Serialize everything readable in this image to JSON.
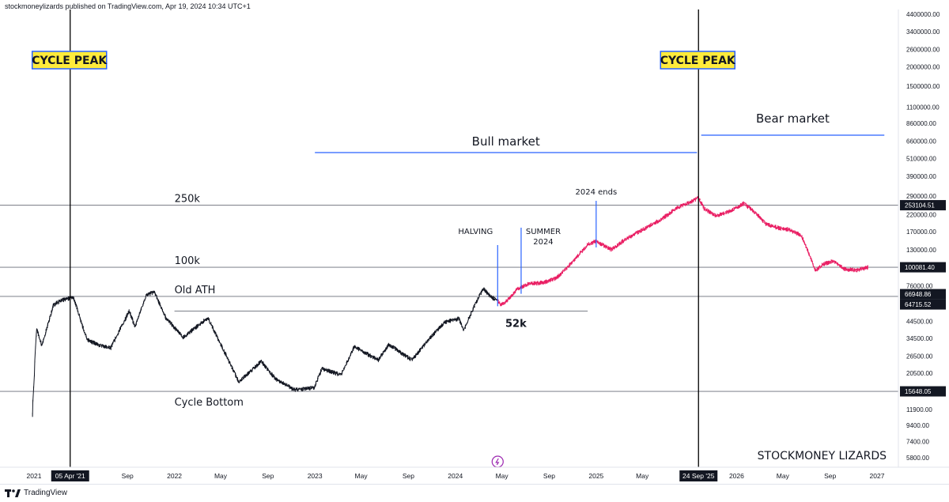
{
  "header": {
    "publisher_line": "stockmoneylizards published on TradingView.com, Apr 19, 2024 10:34 UTC+1"
  },
  "footer": {
    "brand": "TradingView",
    "logo_icon": "tradingview-logo-icon"
  },
  "colors": {
    "history": "#131722",
    "projection": "#e91e63",
    "bull_line": "#2962ff",
    "bear_line": "#2962ff",
    "bear_text": "#e91e63",
    "label_bg": "#ffeb3b",
    "label_border": "#2962ff",
    "price_tag_bg": "#131722"
  },
  "chart_data": {
    "type": "candlestick",
    "title": "",
    "y_scale": "log",
    "y_ticks": [
      "4400000.00",
      "3400000.00",
      "2600000.00",
      "2000000.00",
      "1500000.00",
      "1100000.00",
      "860000.00",
      "660000.00",
      "510000.00",
      "390000.00",
      "290000.00",
      "220000.00",
      "170000.00",
      "130000.00",
      "100000.00",
      "76000.00",
      "58500.00",
      "44500.00",
      "34500.00",
      "26500.00",
      "20500.00",
      "15500.00",
      "11900.00",
      "9400.00",
      "7400.00",
      "5800.00"
    ],
    "x_ticks": [
      "2021",
      "05 Apr '21",
      "Sep",
      "2022",
      "May",
      "Sep",
      "2023",
      "May",
      "Sep",
      "2024",
      "May",
      "Sep",
      "2025",
      "May",
      "24 Sep '25",
      "2026",
      "May",
      "Sep",
      "2027"
    ],
    "horizontal_levels": [
      {
        "label": "250k",
        "value": 253104.51,
        "tag": "253104.51"
      },
      {
        "label": "100k",
        "value": 100081.4,
        "tag": "100081.40"
      },
      {
        "label": "Old ATH",
        "value": 64715.52,
        "tag": "64715.52"
      },
      {
        "label": "Cycle Bottom",
        "value": 15648.05,
        "tag": "15648.05"
      }
    ],
    "current_price_tag": "66948.86",
    "level_52k": {
      "label": "52k",
      "value": 52000
    },
    "vertical_lines": [
      {
        "date": "2021-04-05",
        "label": "CYCLE PEAK",
        "tag": "05 Apr '21"
      },
      {
        "date": "2025-09-24",
        "label": "CYCLE PEAK",
        "tag": "24 Sep '25"
      }
    ],
    "annotations": [
      {
        "text": "HALVING",
        "date": "2024-04-20"
      },
      {
        "text": "SUMMER",
        "text2": "2024",
        "date": "2024-06-20"
      },
      {
        "text": "2024 ends",
        "date": "2025-01-01"
      }
    ],
    "regions": [
      {
        "label": "Bull market",
        "start": "2023-01-01",
        "end": "2025-09-20"
      },
      {
        "label": "Bear market",
        "start": "2025-10-01",
        "end": "2027-01-20"
      }
    ],
    "watermark": "STOCKMONEY LIZARDS",
    "series": [
      {
        "name": "",
        "kind": "history",
        "points": [
          [
            "2020-12-28",
            11000
          ],
          [
            "2021-01-08",
            40000
          ],
          [
            "2021-01-22",
            31000
          ],
          [
            "2021-02-21",
            57000
          ],
          [
            "2021-03-13",
            61000
          ],
          [
            "2021-04-14",
            64000
          ],
          [
            "2021-05-19",
            34000
          ],
          [
            "2021-06-22",
            31000
          ],
          [
            "2021-07-20",
            30000
          ],
          [
            "2021-09-06",
            52000
          ],
          [
            "2021-09-21",
            41000
          ],
          [
            "2021-10-20",
            66000
          ],
          [
            "2021-11-10",
            69000
          ],
          [
            "2021-12-10",
            47000
          ],
          [
            "2022-01-24",
            35000
          ],
          [
            "2022-03-29",
            47000
          ],
          [
            "2022-05-12",
            28000
          ],
          [
            "2022-06-18",
            18000
          ],
          [
            "2022-08-15",
            24500
          ],
          [
            "2022-09-20",
            19000
          ],
          [
            "2022-11-09",
            16000
          ],
          [
            "2022-12-30",
            16500
          ],
          [
            "2023-01-20",
            22000
          ],
          [
            "2023-03-10",
            20000
          ],
          [
            "2023-04-14",
            30500
          ],
          [
            "2023-06-15",
            25000
          ],
          [
            "2023-07-13",
            31500
          ],
          [
            "2023-09-11",
            25000
          ],
          [
            "2023-10-24",
            34000
          ],
          [
            "2023-12-05",
            44000
          ],
          [
            "2024-01-11",
            46500
          ],
          [
            "2024-01-23",
            39000
          ],
          [
            "2024-02-28",
            62000
          ],
          [
            "2024-03-14",
            73000
          ],
          [
            "2024-04-01",
            65000
          ],
          [
            "2024-04-18",
            61000
          ]
        ]
      },
      {
        "name": "",
        "kind": "projection",
        "points": [
          [
            "2024-04-19",
            62000
          ],
          [
            "2024-04-28",
            57000
          ],
          [
            "2024-05-12",
            60000
          ],
          [
            "2024-06-10",
            72000
          ],
          [
            "2024-07-10",
            78000
          ],
          [
            "2024-08-20",
            80000
          ],
          [
            "2024-09-20",
            85000
          ],
          [
            "2024-10-10",
            95000
          ],
          [
            "2024-11-10",
            115000
          ],
          [
            "2024-12-10",
            140000
          ],
          [
            "2025-01-01",
            148000
          ],
          [
            "2025-02-10",
            130000
          ],
          [
            "2025-03-15",
            150000
          ],
          [
            "2025-05-01",
            175000
          ],
          [
            "2025-06-20",
            205000
          ],
          [
            "2025-08-01",
            245000
          ],
          [
            "2025-09-10",
            270000
          ],
          [
            "2025-09-24",
            285000
          ],
          [
            "2025-10-10",
            240000
          ],
          [
            "2025-11-10",
            215000
          ],
          [
            "2025-12-20",
            235000
          ],
          [
            "2026-01-20",
            260000
          ],
          [
            "2026-02-20",
            225000
          ],
          [
            "2026-03-20",
            190000
          ],
          [
            "2026-04-20",
            180000
          ],
          [
            "2026-05-20",
            175000
          ],
          [
            "2026-06-20",
            160000
          ],
          [
            "2026-07-10",
            120000
          ],
          [
            "2026-07-25",
            95000
          ],
          [
            "2026-08-15",
            105000
          ],
          [
            "2026-09-10",
            110000
          ],
          [
            "2026-10-10",
            97000
          ],
          [
            "2026-11-10",
            96000
          ],
          [
            "2026-12-10",
            100000
          ]
        ]
      }
    ]
  }
}
